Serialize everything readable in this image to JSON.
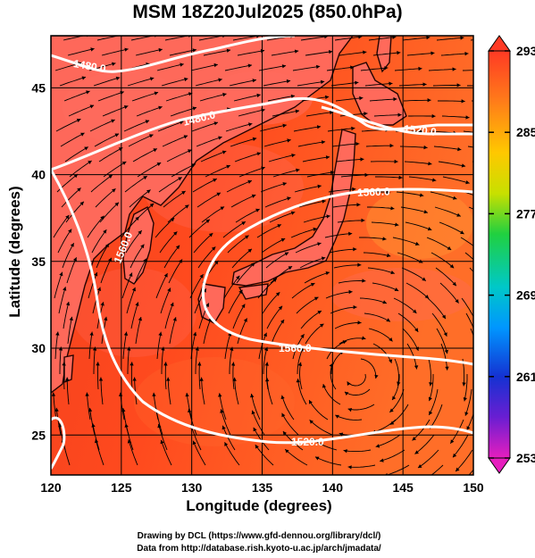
{
  "title": "MSM 18Z20Jul2025 (850.0hPa)",
  "x_axis": {
    "label": "Longitude (degrees)",
    "ticks": [
      "120",
      "125",
      "130",
      "135",
      "140",
      "145",
      "150"
    ]
  },
  "y_axis": {
    "label": "Latitude  (degrees)",
    "ticks": [
      "25",
      "30",
      "35",
      "40",
      "45"
    ]
  },
  "colorbar": {
    "ticks": [
      "293",
      "285",
      "277",
      "269",
      "261",
      "253"
    ],
    "min": 253,
    "max": 293
  },
  "contours": [
    {
      "label": "1480.0"
    },
    {
      "label": "1480.0"
    },
    {
      "label": "1520.0"
    },
    {
      "label": "1560.0"
    },
    {
      "label": "1560.0"
    },
    {
      "label": "1560.0"
    },
    {
      "label": "1520.0"
    }
  ],
  "credits": [
    "Drawing by DCL (https://www.gfd-dennou.org/library/dcl/)",
    "Data from http://database.rish.kyoto-u.ac.jp/arch/jmadata/"
  ],
  "colors": {
    "field_warm": "#ff5a22",
    "field_hot": "#ff3b1e",
    "contour": "#ffffff",
    "streamline": "#000000"
  }
}
